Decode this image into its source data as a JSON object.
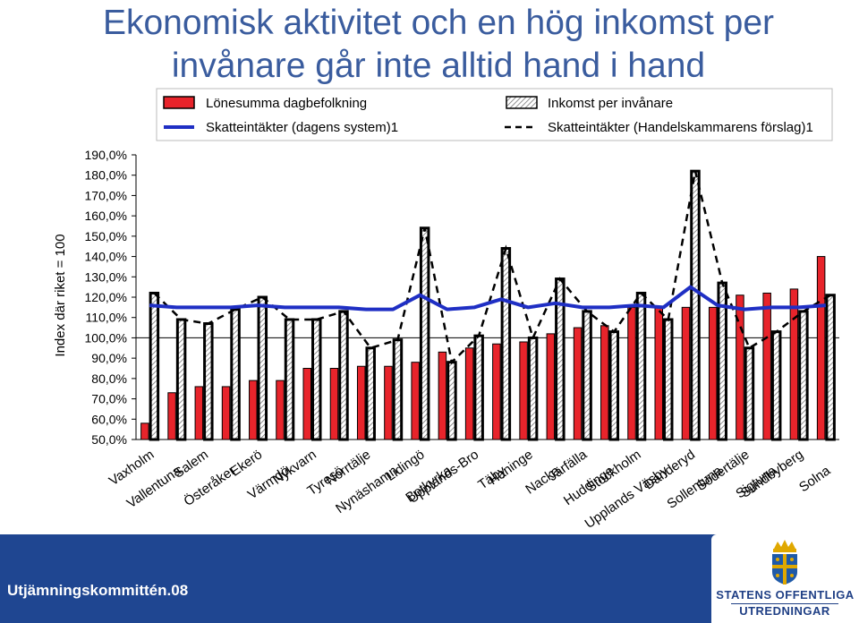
{
  "title_line1": "Ekonomisk aktivitet och en hög inkomst per",
  "title_line2": "invånare går inte alltid hand i hand",
  "footer": "Utjämningskommittén.08",
  "logo": {
    "line1": "STATENS OFFENTLIGA",
    "line2": "UTREDNINGAR"
  },
  "colors": {
    "title": "#3a5c9e",
    "band": "#1f4691",
    "bar_red": "#e8242b",
    "line_blue": "#1f2fc4",
    "dashed_black": "#000000"
  },
  "chart_data": {
    "type": "bar",
    "ylabel": "Index där riket = 100",
    "ylim": [
      50,
      190
    ],
    "yticks": [
      "50,0%",
      "60,0%",
      "70,0%",
      "80,0%",
      "90,0%",
      "100,0%",
      "110,0%",
      "120,0%",
      "130,0%",
      "140,0%",
      "150,0%",
      "160,0%",
      "170,0%",
      "180,0%",
      "190,0%"
    ],
    "legend_position": "top",
    "categories": [
      "Vaxholm",
      "Vallentuna",
      "Salem",
      "Österåker",
      "Ekerö",
      "Värmdö",
      "Nykvarn",
      "Tyresö",
      "Norrtälje",
      "Nynäshamn",
      "Lidingö",
      "Botkyrka",
      "Upplands-Bro",
      "Täby",
      "Haninge",
      "Nacka",
      "Järfälla",
      "Huddinge",
      "Stockholm",
      "Upplands Väsby",
      "Danderyd",
      "Sollentuna",
      "Södertälje",
      "Sigtuna",
      "Sundbyberg",
      "Solna"
    ],
    "series": [
      {
        "name": "Lönesumma dagbefolkning",
        "kind": "bar",
        "values": [
          58,
          73,
          76,
          76,
          79,
          79,
          85,
          85,
          86,
          86,
          88,
          93,
          95,
          97,
          98,
          102,
          105,
          106,
          115,
          115,
          115,
          115,
          121,
          122,
          124,
          140
        ]
      },
      {
        "name": "Inkomst per invånare",
        "kind": "bar",
        "values": [
          122,
          109,
          107,
          114,
          120,
          109,
          109,
          113,
          95,
          99,
          154,
          88,
          101,
          144,
          100,
          129,
          113,
          103,
          122,
          109,
          182,
          127,
          95,
          103,
          113,
          121
        ]
      },
      {
        "name": "Skatteintäkter (dagens system)1",
        "kind": "line",
        "values": [
          116,
          115,
          115,
          115,
          116,
          115,
          115,
          115,
          114,
          114,
          121,
          114,
          115,
          119,
          115,
          117,
          115,
          115,
          116,
          115,
          125,
          116,
          114,
          115,
          115,
          116
        ]
      },
      {
        "name": "Skatteintäkter (Handelskammarens förslag)1",
        "kind": "dashed",
        "values": [
          122,
          109,
          107,
          114,
          120,
          109,
          109,
          113,
          95,
          99,
          154,
          88,
          101,
          144,
          100,
          129,
          113,
          103,
          122,
          109,
          182,
          127,
          95,
          103,
          113,
          121
        ]
      }
    ]
  }
}
